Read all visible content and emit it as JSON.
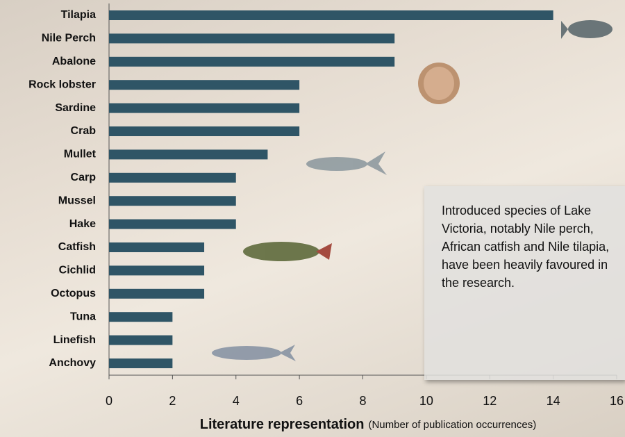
{
  "chart_data": {
    "type": "bar",
    "orientation": "horizontal",
    "categories": [
      "Tilapia",
      "Nile Perch",
      "Abalone",
      "Rock lobster",
      "Sardine",
      "Crab",
      "Mullet",
      "Carp",
      "Mussel",
      "Hake",
      "Catfish",
      "Cichlid",
      "Octopus",
      "Tuna",
      "Linefish",
      "Anchovy"
    ],
    "values": [
      14,
      9,
      9,
      6,
      6,
      6,
      5,
      4,
      4,
      4,
      3,
      3,
      3,
      2,
      2,
      2
    ],
    "color": "#2f5566",
    "xlim": [
      0,
      16
    ],
    "xticks": [
      0,
      2,
      4,
      6,
      8,
      10,
      12,
      14,
      16
    ],
    "x_label": "Literature representation",
    "x_label_note": "(Number of publication occurrences)",
    "annotation": "Introduced species of Lake Victoria, notably Nile perch, African catfish and Nile tilapia, have been heavily favoured in the research."
  }
}
